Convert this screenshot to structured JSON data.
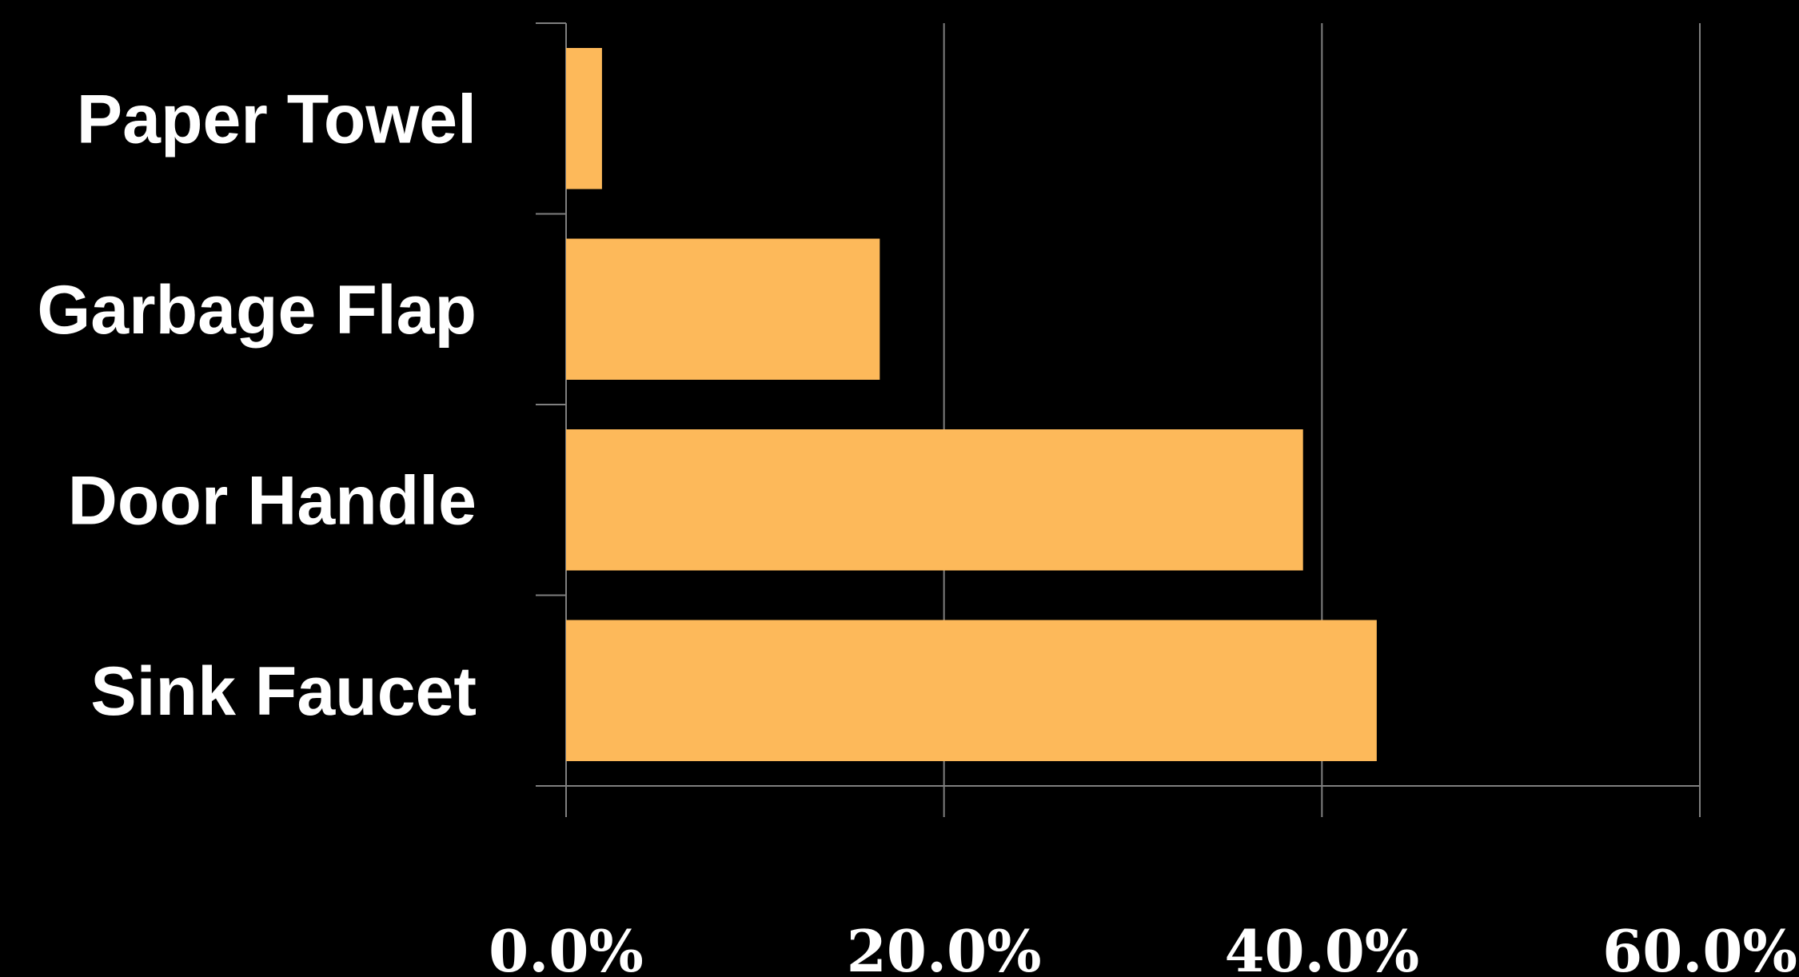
{
  "chart_data": {
    "type": "bar",
    "orientation": "horizontal",
    "categories": [
      "Sink Faucet",
      "Door Handle",
      "Garbage Flap",
      "Paper Towel"
    ],
    "values": [
      42.9,
      39.0,
      16.6,
      1.9
    ],
    "value_unit": "%",
    "xlim": [
      0,
      60
    ],
    "x_ticks": [
      0,
      20,
      40,
      60
    ],
    "x_tick_labels": [
      "0.0%",
      "20.0%",
      "40.0%",
      "60.0%"
    ],
    "title": "",
    "xlabel": "",
    "ylabel": "",
    "grid": true,
    "legend": "none"
  },
  "colors": {
    "background": "#000000",
    "bar": "#FDB95A",
    "gridline": "#7f7f7f",
    "text": "#ffffff"
  }
}
